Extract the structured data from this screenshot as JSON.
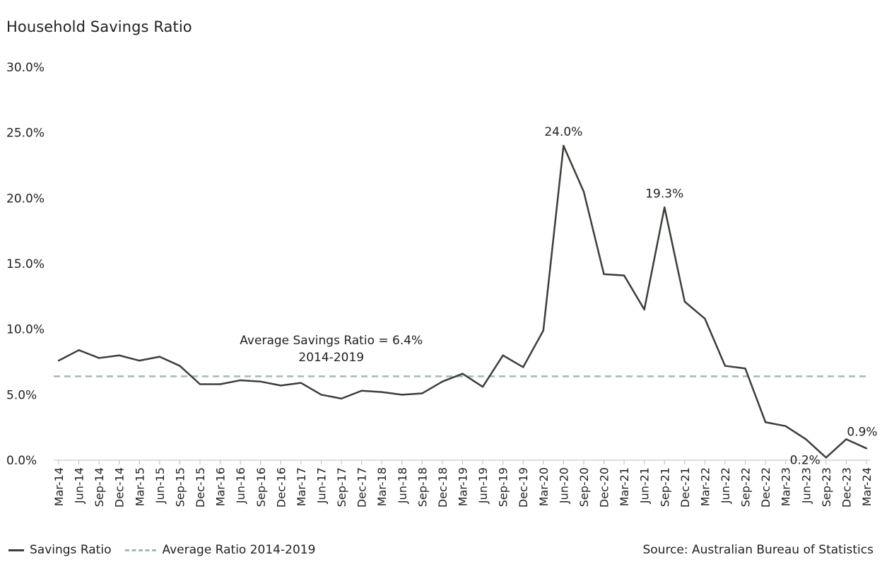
{
  "chart_data": {
    "type": "line",
    "title": "Household Savings Ratio",
    "xlabel": "",
    "ylabel": "",
    "ylim": [
      0,
      30
    ],
    "yticks": [
      "30.0%",
      "25.0%",
      "20.0%",
      "15.0%",
      "10.0%",
      "5.0%",
      "0.0%"
    ],
    "ytick_values": [
      30,
      25,
      20,
      15,
      10,
      5,
      0
    ],
    "grid": false,
    "legend_position": "bottom-left",
    "categories": [
      "Mar-14",
      "Jun-14",
      "Sep-14",
      "Dec-14",
      "Mar-15",
      "Jun-15",
      "Sep-15",
      "Dec-15",
      "Mar-16",
      "Jun-16",
      "Sep-16",
      "Dec-16",
      "Mar-17",
      "Jun-17",
      "Sep-17",
      "Dec-17",
      "Mar-18",
      "Jun-18",
      "Sep-18",
      "Dec-18",
      "Mar-19",
      "Jun-19",
      "Sep-19",
      "Dec-19",
      "Mar-20",
      "Jun-20",
      "Sep-20",
      "Dec-20",
      "Mar-21",
      "Jun-21",
      "Sep-21",
      "Dec-21",
      "Mar-22",
      "Jun-22",
      "Sep-22",
      "Dec-22",
      "Mar-23",
      "Jun-23",
      "Sep-23",
      "Dec-23",
      "Mar-24"
    ],
    "series": [
      {
        "name": "Savings Ratio",
        "color": "#3a4038",
        "values": [
          7.6,
          8.4,
          7.8,
          8.0,
          7.6,
          7.9,
          7.2,
          5.8,
          5.8,
          6.1,
          6.0,
          5.7,
          5.9,
          5.0,
          4.7,
          5.3,
          5.2,
          5.0,
          5.1,
          6.0,
          6.6,
          5.6,
          8.0,
          7.1,
          9.9,
          24.0,
          20.5,
          14.2,
          14.1,
          11.5,
          19.3,
          12.1,
          10.8,
          7.2,
          7.0,
          2.9,
          2.6,
          1.6,
          0.2,
          1.6,
          0.9
        ]
      },
      {
        "name": "Average Ratio 2014-2019",
        "color": "#a5b8b8",
        "style": "dashed",
        "value": 6.4
      }
    ],
    "annotations": {
      "average_line1": "Average Savings Ratio = 6.4%",
      "average_line2": "2014-2019",
      "labels": [
        {
          "category": "Jun-20",
          "text": "24.0%",
          "value": 24.0
        },
        {
          "category": "Sep-21",
          "text": "19.3%",
          "value": 19.3
        },
        {
          "category": "Sep-23",
          "text": "0.2%",
          "value": 0.2
        },
        {
          "category": "Mar-24",
          "text": "0.9%",
          "value": 0.9
        }
      ]
    }
  },
  "legend": {
    "series_label": "Savings Ratio",
    "average_label": "Average Ratio 2014-2019"
  },
  "source": "Source: Australian Bureau of Statistics"
}
